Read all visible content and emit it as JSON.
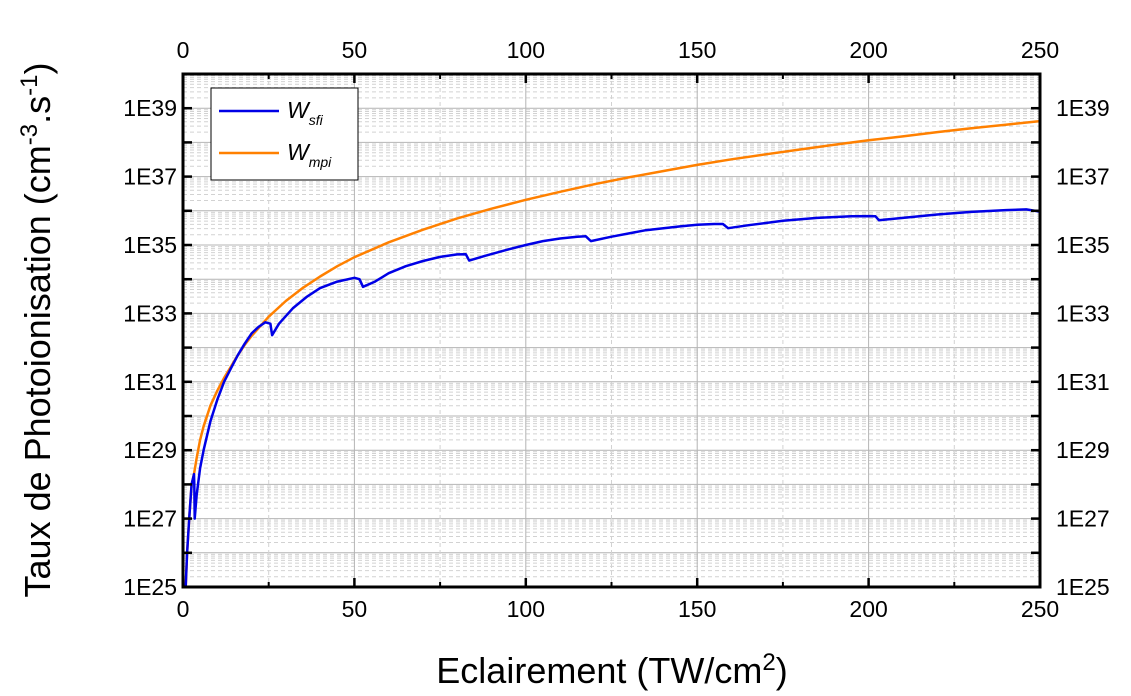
{
  "chart_data": {
    "type": "line",
    "title": "",
    "xlabel": "Eclairement (TW/cm",
    "xlabel_sup": "2",
    "xlabel_end": ")",
    "ylabel_pre": "Taux de Photoionisation (cm",
    "ylabel_sup1": "-3",
    "ylabel_mid": ".s",
    "ylabel_sup2": "-1",
    "ylabel_end": ")",
    "xlim": [
      0,
      250
    ],
    "ylim": [
      1e+25,
      1e+40
    ],
    "yscale": "log",
    "grid": true,
    "legend_position": "top-left",
    "x_ticks": [
      "0",
      "50",
      "100",
      "150",
      "200",
      "250"
    ],
    "y_ticks": [
      "1E25",
      "1E27",
      "1E29",
      "1E31",
      "1E33",
      "1E35",
      "1E37",
      "1E39"
    ],
    "series": [
      {
        "name": "W",
        "name_sub": "sfi",
        "color": "#0000e6",
        "points": [
          [
            0.8,
            1e+25
          ],
          [
            1.2,
            1e+26
          ],
          [
            1.8,
            1e+27
          ],
          [
            2.5,
            1e+28
          ],
          [
            3.2,
            2e+28
          ],
          [
            3.3,
            1e+28
          ],
          [
            3.4,
            1e+27
          ],
          [
            4.0,
            5e+27
          ],
          [
            5,
            3e+28
          ],
          [
            6,
            1e+29
          ],
          [
            8,
            7e+29
          ],
          [
            10,
            3e+30
          ],
          [
            12,
            1e+31
          ],
          [
            14,
            2.5e+31
          ],
          [
            16,
            6e+31
          ],
          [
            18,
            1.3e+32
          ],
          [
            20,
            2.6e+32
          ],
          [
            22,
            4e+32
          ],
          [
            24,
            5.5e+32
          ],
          [
            25.5,
            5e+32
          ],
          [
            26,
            2.3e+32
          ],
          [
            28,
            5e+32
          ],
          [
            32,
            1.4e+33
          ],
          [
            36,
            3e+33
          ],
          [
            40,
            5.5e+33
          ],
          [
            45,
            8.5e+33
          ],
          [
            50,
            1.1e+34
          ],
          [
            51.5,
            1e+34
          ],
          [
            52.5,
            6e+33
          ],
          [
            56,
            8.5e+33
          ],
          [
            60,
            1.5e+34
          ],
          [
            65,
            2.4e+34
          ],
          [
            70,
            3.4e+34
          ],
          [
            75,
            4.5e+34
          ],
          [
            80,
            5.3e+34
          ],
          [
            82.5,
            5.4e+34
          ],
          [
            83.5,
            3.5e+34
          ],
          [
            88,
            4.8e+34
          ],
          [
            95,
            7.5e+34
          ],
          [
            100,
            1e+35
          ],
          [
            105,
            1.3e+35
          ],
          [
            110,
            1.55e+35
          ],
          [
            115,
            1.75e+35
          ],
          [
            117.5,
            1.8e+35
          ],
          [
            119,
            1.3e+35
          ],
          [
            125,
            1.75e+35
          ],
          [
            135,
            2.7e+35
          ],
          [
            145,
            3.5e+35
          ],
          [
            150,
            3.9e+35
          ],
          [
            155,
            4.1e+35
          ],
          [
            157.5,
            4.1e+35
          ],
          [
            159,
            3.1e+35
          ],
          [
            165,
            3.8e+35
          ],
          [
            175,
            5.1e+35
          ],
          [
            185,
            6.2e+35
          ],
          [
            195,
            6.9e+35
          ],
          [
            200,
            7e+35
          ],
          [
            202,
            6.9e+35
          ],
          [
            203,
            5.3e+35
          ],
          [
            210,
            6.2e+35
          ],
          [
            220,
            7.8e+35
          ],
          [
            230,
            9.3e+35
          ],
          [
            240,
            1.05e+36
          ],
          [
            246,
            1.1e+36
          ],
          [
            250,
            9.5e+35
          ]
        ]
      },
      {
        "name": "W",
        "name_sub": "mpi",
        "color": "#ff8000",
        "points": [
          [
            0.8,
            1e+25
          ],
          [
            1.2,
            1e+26
          ],
          [
            1.8,
            1e+27
          ],
          [
            2.5,
            1e+28
          ],
          [
            3.2,
            2e+28
          ],
          [
            4.0,
            6e+28
          ],
          [
            5,
            2e+29
          ],
          [
            6,
            5e+29
          ],
          [
            8,
            2e+30
          ],
          [
            10,
            5.5e+30
          ],
          [
            12,
            1.3e+31
          ],
          [
            14,
            2.8e+31
          ],
          [
            16,
            6e+31
          ],
          [
            18,
            1.2e+32
          ],
          [
            20,
            2.2e+32
          ],
          [
            25,
            8e+32
          ],
          [
            30,
            2.3e+33
          ],
          [
            35,
            5.6e+33
          ],
          [
            40,
            1.2e+34
          ],
          [
            45,
            2.4e+34
          ],
          [
            50,
            4.4e+34
          ],
          [
            60,
            1.2e+35
          ],
          [
            70,
            2.8e+35
          ],
          [
            80,
            6e+35
          ],
          [
            90,
            1.15e+36
          ],
          [
            100,
            2.1e+36
          ],
          [
            110,
            3.6e+36
          ],
          [
            120,
            6e+36
          ],
          [
            130,
            9.5e+36
          ],
          [
            140,
            1.45e+37
          ],
          [
            150,
            2.2e+37
          ],
          [
            160,
            3.2e+37
          ],
          [
            170,
            4.5e+37
          ],
          [
            180,
            6.2e+37
          ],
          [
            190,
            8.5e+37
          ],
          [
            200,
            1.15e+38
          ],
          [
            210,
            1.5e+38
          ],
          [
            220,
            2e+38
          ],
          [
            230,
            2.6e+38
          ],
          [
            240,
            3.3e+38
          ],
          [
            250,
            4.2e+38
          ]
        ]
      }
    ]
  }
}
